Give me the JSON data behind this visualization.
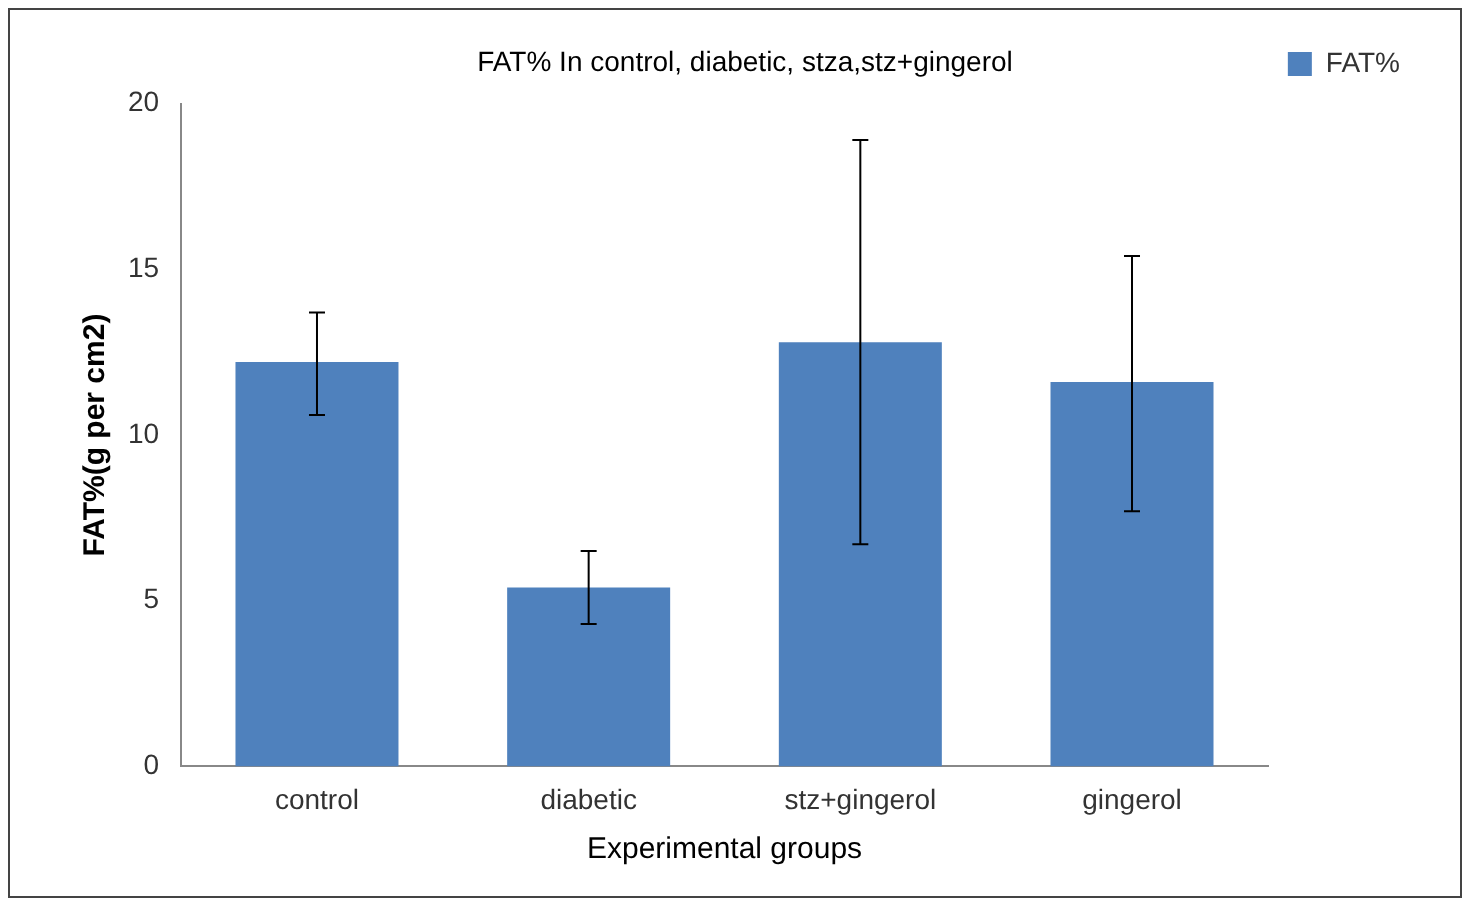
{
  "chart_data": {
    "type": "bar",
    "title": "FAT% In control, diabetic, stza,stz+gingerol",
    "xlabel": "Experimental groups",
    "ylabel": "FAT%(g per cm2)",
    "categories": [
      "control",
      "diabetic",
      "stz+gingerol",
      "gingerol"
    ],
    "series": [
      {
        "name": "FAT%",
        "color": "#4f81bd",
        "values": [
          12.2,
          5.4,
          12.8,
          11.6
        ],
        "errors": [
          [
            10.6,
            13.7
          ],
          [
            4.3,
            6.5
          ],
          [
            6.7,
            18.9
          ],
          [
            7.7,
            15.4
          ]
        ]
      }
    ],
    "ylim": [
      0,
      20
    ],
    "yticks": [
      0,
      5,
      10,
      15,
      20
    ],
    "grid": false,
    "legend": "top right"
  }
}
